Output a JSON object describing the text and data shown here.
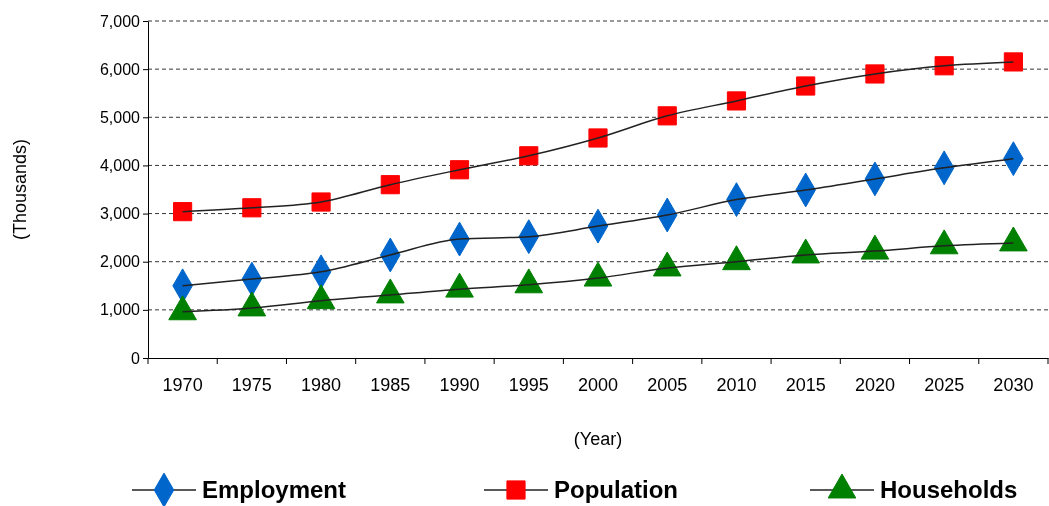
{
  "chart_data": {
    "type": "line",
    "xlabel": "(Year)",
    "ylabel": "(Thousands)",
    "categories": [
      "1970",
      "1975",
      "1980",
      "1985",
      "1990",
      "1995",
      "2000",
      "2005",
      "2010",
      "2015",
      "2020",
      "2025",
      "2030"
    ],
    "series": [
      {
        "name": "Employment",
        "color": "#0066cc",
        "marker": "diamond",
        "values": [
          1500,
          1640,
          1790,
          2140,
          2470,
          2520,
          2740,
          2970,
          3290,
          3490,
          3720,
          3950,
          4140
        ]
      },
      {
        "name": "Population",
        "color": "#ff0000",
        "marker": "square",
        "values": [
          3040,
          3120,
          3240,
          3600,
          3910,
          4200,
          4570,
          5030,
          5340,
          5650,
          5900,
          6070,
          6150
        ]
      },
      {
        "name": "Households",
        "color": "#008000",
        "marker": "triangle",
        "values": [
          960,
          1040,
          1190,
          1310,
          1430,
          1520,
          1660,
          1870,
          2000,
          2140,
          2220,
          2330,
          2390
        ]
      }
    ],
    "ylim": [
      0,
      7000
    ],
    "yticks": [
      0,
      {
        "value": 1000,
        "label": "1,000"
      },
      {
        "value": 2000,
        "label": "2,000"
      },
      {
        "value": 3000,
        "label": "3,000"
      },
      {
        "value": 4000,
        "label": "4,000"
      },
      {
        "value": 5000,
        "label": "5,000"
      },
      {
        "value": 6000,
        "label": "6,000"
      },
      {
        "value": 7000,
        "label": "7,000"
      }
    ],
    "grid": "y",
    "legend": "bottom"
  }
}
